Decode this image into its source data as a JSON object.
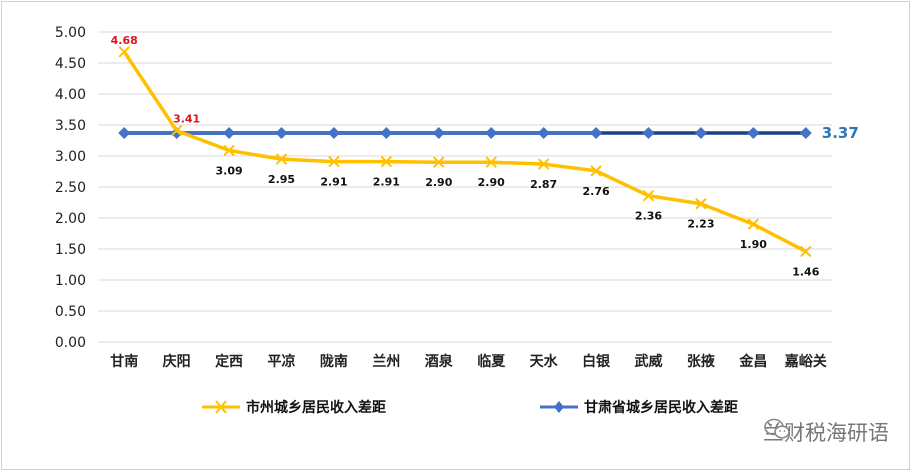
{
  "chart_data": {
    "type": "line",
    "categories": [
      "甘南",
      "庆阳",
      "定西",
      "平凉",
      "陇南",
      "兰州",
      "酒泉",
      "临夏",
      "天水",
      "白银",
      "武威",
      "张掖",
      "金昌",
      "嘉峪关"
    ],
    "ylim": [
      0,
      5
    ],
    "yticks": [
      "0.00",
      "0.50",
      "1.00",
      "1.50",
      "2.00",
      "2.50",
      "3.00",
      "3.50",
      "4.00",
      "4.50",
      "5.00"
    ],
    "series": [
      {
        "name": "市州城乡居民收入差距",
        "values": [
          4.68,
          3.41,
          3.09,
          2.95,
          2.91,
          2.91,
          2.9,
          2.9,
          2.87,
          2.76,
          2.36,
          2.23,
          1.9,
          1.46
        ],
        "labels": [
          "4.68",
          "3.41",
          "3.09",
          "2.95",
          "2.91",
          "2.91",
          "2.90",
          "2.90",
          "2.87",
          "2.76",
          "2.36",
          "2.23",
          "1.90",
          "1.46"
        ],
        "color": "#ffc000"
      },
      {
        "name": "甘肃省城乡居民收入差距",
        "values": [
          3.37,
          3.37,
          3.37,
          3.37,
          3.37,
          3.37,
          3.37,
          3.37,
          3.37,
          3.37,
          3.37,
          3.37,
          3.37,
          3.37
        ],
        "end_label": "3.37",
        "color": "#4472c4",
        "label_color": "#2e75b6"
      }
    ],
    "highlight_label_color": "#e0141e",
    "grid": true,
    "legend": "bottom"
  },
  "watermark": "兰财税海研语"
}
